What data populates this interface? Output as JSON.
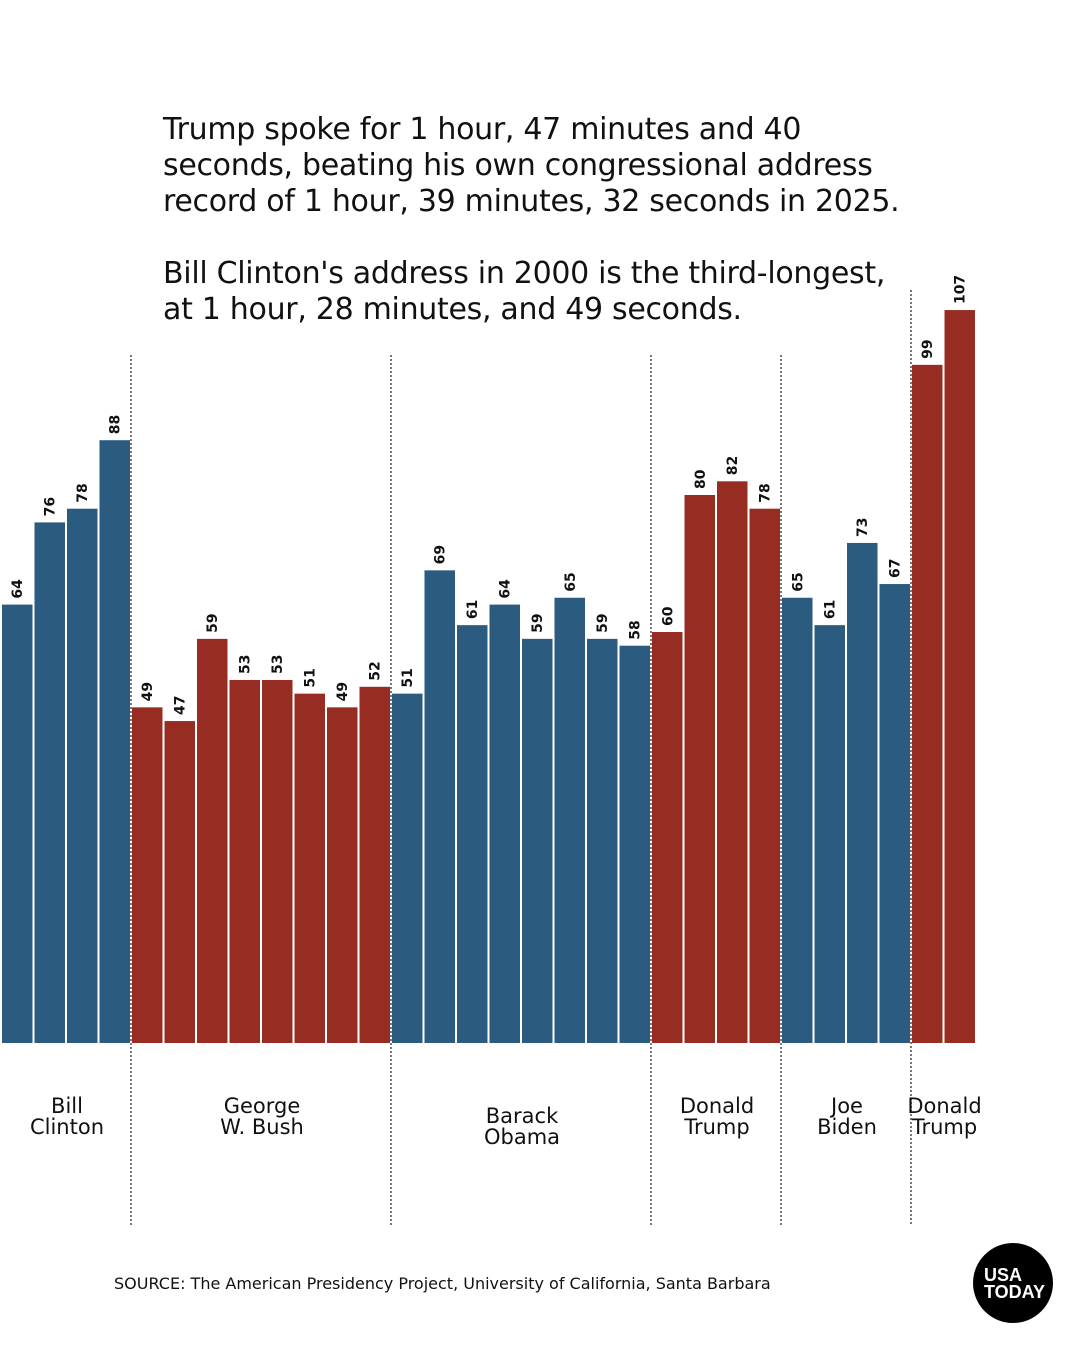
{
  "header": {
    "paragraph1": "Trump spoke for 1 hour, 47 minutes and 40 seconds, beating his own congressional address record of 1 hour, 39 minutes, 32 seconds in 2025.",
    "paragraph2": "Bill Clinton's address in 2000 is the third-longest, at 1 hour, 28 minutes, and 49 seconds."
  },
  "chart_data": {
    "type": "bar",
    "ylim": [
      0,
      110
    ],
    "grid": false,
    "colors": {
      "democrat": "#2b5b7f",
      "republican": "#972d22"
    },
    "groups": [
      {
        "label": "Bill Clinton",
        "lines": [
          "Bill",
          "Clinton"
        ],
        "party": "democrat",
        "values": [
          64,
          76,
          78,
          88
        ]
      },
      {
        "label": "George W. Bush",
        "lines": [
          "George",
          "W. Bush"
        ],
        "party": "republican",
        "values": [
          49,
          47,
          59,
          53,
          53,
          51,
          49,
          52
        ]
      },
      {
        "label": "Barack Obama",
        "lines": [
          "Barack",
          "Obama"
        ],
        "party": "democrat",
        "values": [
          51,
          69,
          61,
          64,
          59,
          65,
          59,
          58
        ]
      },
      {
        "label": "Donald Trump",
        "lines": [
          "Donald",
          "Trump"
        ],
        "party": "republican",
        "values": [
          60,
          80,
          82,
          78
        ]
      },
      {
        "label": "Joe Biden",
        "lines": [
          "Joe",
          "Biden"
        ],
        "party": "democrat",
        "values": [
          65,
          61,
          73,
          67
        ]
      },
      {
        "label": "Donald Trump",
        "lines": [
          "Donald",
          "Trump"
        ],
        "party": "republican",
        "values": [
          99,
          107
        ]
      }
    ]
  },
  "footer": {
    "source": "SOURCE: The American Presidency Project, University of California, Santa Barbara",
    "logo": "USA TODAY"
  }
}
